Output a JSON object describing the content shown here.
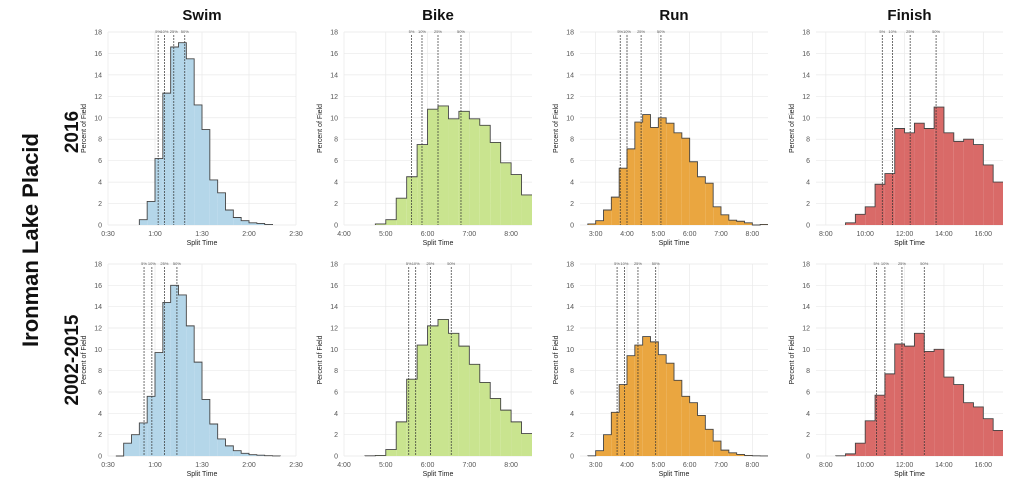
{
  "figure": {
    "main_label": "Ironman Lake Placid",
    "row_labels": [
      "2016",
      "2002-2015"
    ],
    "column_titles": [
      "Swim",
      "Bike",
      "Run",
      "Finish"
    ]
  },
  "chart_data": [
    {
      "type": "bar",
      "row": "2016",
      "title": "Swim",
      "xlabel": "Split Time",
      "ylabel": "Percent of Field",
      "xlim": [
        "0:30",
        "2:30"
      ],
      "ylim": [
        0,
        18
      ],
      "yticks": [
        0,
        2,
        4,
        6,
        8,
        10,
        12,
        14,
        16,
        18
      ],
      "xticks": [
        "0:30",
        "1:00",
        "1:30",
        "2:00",
        "2:30"
      ],
      "bin_width_min": 5,
      "color": "#b4d6e9",
      "grid": true,
      "bins": [
        "0:50",
        "0:55",
        "1:00",
        "1:05",
        "1:10",
        "1:15",
        "1:20",
        "1:25",
        "1:30",
        "1:35",
        "1:40",
        "1:45",
        "1:50",
        "1:55",
        "2:00",
        "2:05",
        "2:10"
      ],
      "values": [
        0.5,
        2.2,
        6.2,
        12.3,
        16.6,
        17.0,
        15.5,
        11.2,
        8.9,
        4.2,
        3.0,
        1.4,
        0.7,
        0.4,
        0.2,
        0.15,
        0.05
      ],
      "percentiles": [
        {
          "label": "5%",
          "value": "1:02"
        },
        {
          "label": "10%",
          "value": "1:06"
        },
        {
          "label": "25%",
          "value": "1:12"
        },
        {
          "label": "50%",
          "value": "1:19"
        }
      ]
    },
    {
      "type": "bar",
      "row": "2016",
      "title": "Bike",
      "xlabel": "Split Time",
      "ylabel": "Percent of Field",
      "xlim": [
        "4:00",
        "8:30"
      ],
      "ylim": [
        0,
        18
      ],
      "yticks": [
        0,
        2,
        4,
        6,
        8,
        10,
        12,
        14,
        16,
        18
      ],
      "xticks": [
        "4:00",
        "5:00",
        "6:00",
        "7:00",
        "8:00"
      ],
      "bin_width_min": 15,
      "color": "#c9e48f",
      "grid": true,
      "bins": [
        "4:45",
        "5:00",
        "5:15",
        "5:30",
        "5:45",
        "6:00",
        "6:15",
        "6:30",
        "6:45",
        "7:00",
        "7:15",
        "7:30",
        "7:45",
        "8:00",
        "8:15"
      ],
      "values": [
        0.1,
        0.5,
        2.5,
        4.5,
        7.5,
        10.8,
        11.1,
        9.9,
        10.6,
        9.9,
        9.3,
        7.7,
        5.8,
        4.7,
        2.8
      ],
      "percentiles": [
        {
          "label": "5%",
          "value": "5:37"
        },
        {
          "label": "10%",
          "value": "5:52"
        },
        {
          "label": "25%",
          "value": "6:15"
        },
        {
          "label": "50%",
          "value": "6:48"
        }
      ]
    },
    {
      "type": "bar",
      "row": "2016",
      "title": "Run",
      "xlabel": "Split Time",
      "ylabel": "Percent of Field",
      "xlim": [
        "2:30",
        "8:30"
      ],
      "ylim": [
        0,
        18
      ],
      "yticks": [
        0,
        2,
        4,
        6,
        8,
        10,
        12,
        14,
        16,
        18
      ],
      "xticks": [
        "3:00",
        "4:00",
        "5:00",
        "6:00",
        "7:00",
        "8:00"
      ],
      "bin_width_min": 15,
      "color": "#eaa640",
      "grid": true,
      "bins": [
        "2:45",
        "3:00",
        "3:15",
        "3:30",
        "3:45",
        "4:00",
        "4:15",
        "4:30",
        "4:45",
        "5:00",
        "5:15",
        "5:30",
        "5:45",
        "6:00",
        "6:15",
        "6:30",
        "6:45",
        "7:00",
        "7:15",
        "7:30",
        "7:45",
        "8:00",
        "8:15"
      ],
      "values": [
        0.1,
        0.4,
        1.4,
        2.6,
        5.3,
        7.1,
        9.6,
        10.3,
        9.1,
        10.0,
        9.5,
        8.6,
        8.1,
        5.9,
        4.5,
        3.9,
        1.7,
        0.95,
        0.45,
        0.35,
        0.2,
        0.0,
        0.05
      ],
      "percentiles": [
        {
          "label": "5%",
          "value": "3:47"
        },
        {
          "label": "10%",
          "value": "4:00"
        },
        {
          "label": "25%",
          "value": "4:27"
        },
        {
          "label": "50%",
          "value": "5:05"
        }
      ]
    },
    {
      "type": "bar",
      "row": "2016",
      "title": "Finish",
      "xlabel": "Split Time",
      "ylabel": "Percent of Field",
      "xlim": [
        "7:30",
        "17:00"
      ],
      "ylim": [
        0,
        18
      ],
      "yticks": [
        0,
        2,
        4,
        6,
        8,
        10,
        12,
        14,
        16,
        18
      ],
      "xticks": [
        "8:00",
        "10:00",
        "12:00",
        "14:00",
        "16:00"
      ],
      "bin_width_min": 30,
      "color": "#d96a68",
      "grid": true,
      "bins": [
        "9:00",
        "9:30",
        "10:00",
        "10:30",
        "11:00",
        "11:30",
        "12:00",
        "12:30",
        "13:00",
        "13:30",
        "14:00",
        "14:30",
        "15:00",
        "15:30",
        "16:00",
        "16:30"
      ],
      "values": [
        0.2,
        1.0,
        1.7,
        3.8,
        4.8,
        9.0,
        8.6,
        9.5,
        9.0,
        11.0,
        8.6,
        7.8,
        8.0,
        7.5,
        5.6,
        4.0
      ],
      "percentiles": [
        {
          "label": "5%",
          "value": "10:52"
        },
        {
          "label": "10%",
          "value": "11:23"
        },
        {
          "label": "25%",
          "value": "12:17"
        },
        {
          "label": "50%",
          "value": "13:36"
        }
      ]
    },
    {
      "type": "bar",
      "row": "2002-2015",
      "title": "Swim",
      "xlabel": "Split Time",
      "ylabel": "Percent of Field",
      "xlim": [
        "0:30",
        "2:30"
      ],
      "ylim": [
        0,
        18
      ],
      "yticks": [
        0,
        2,
        4,
        6,
        8,
        10,
        12,
        14,
        16,
        18
      ],
      "xticks": [
        "0:30",
        "1:00",
        "1:30",
        "2:00",
        "2:30"
      ],
      "bin_width_min": 5,
      "color": "#b4d6e9",
      "grid": true,
      "bins": [
        "0:35",
        "0:40",
        "0:45",
        "0:50",
        "0:55",
        "1:00",
        "1:05",
        "1:10",
        "1:15",
        "1:20",
        "1:25",
        "1:30",
        "1:35",
        "1:40",
        "1:45",
        "1:50",
        "1:55",
        "2:00",
        "2:05",
        "2:10",
        "2:15"
      ],
      "values": [
        0.0,
        1.2,
        2.0,
        3.1,
        5.6,
        9.7,
        14.4,
        16.0,
        15.1,
        12.2,
        8.8,
        5.3,
        3.0,
        1.6,
        0.95,
        0.5,
        0.25,
        0.12,
        0.08,
        0.03,
        0.01
      ],
      "percentiles": [
        {
          "label": "5%",
          "value": "0:53"
        },
        {
          "label": "10%",
          "value": "0:58"
        },
        {
          "label": "25%",
          "value": "1:06"
        },
        {
          "label": "50%",
          "value": "1:14"
        }
      ]
    },
    {
      "type": "bar",
      "row": "2002-2015",
      "title": "Bike",
      "xlabel": "Split Time",
      "ylabel": "Percent of Field",
      "xlim": [
        "4:00",
        "8:30"
      ],
      "ylim": [
        0,
        18
      ],
      "yticks": [
        0,
        2,
        4,
        6,
        8,
        10,
        12,
        14,
        16,
        18
      ],
      "xticks": [
        "4:00",
        "5:00",
        "6:00",
        "7:00",
        "8:00"
      ],
      "bin_width_min": 15,
      "color": "#c9e48f",
      "grid": true,
      "bins": [
        "4:30",
        "4:45",
        "5:00",
        "5:15",
        "5:30",
        "5:45",
        "6:00",
        "6:15",
        "6:30",
        "6:45",
        "7:00",
        "7:15",
        "7:30",
        "7:45",
        "8:00",
        "8:15"
      ],
      "values": [
        0.02,
        0.05,
        0.6,
        3.2,
        7.2,
        10.4,
        12.2,
        12.8,
        11.5,
        10.3,
        8.6,
        6.9,
        5.4,
        4.3,
        3.2,
        2.1
      ],
      "percentiles": [
        {
          "label": "5%",
          "value": "5:33"
        },
        {
          "label": "10%",
          "value": "5:43"
        },
        {
          "label": "25%",
          "value": "6:04"
        },
        {
          "label": "50%",
          "value": "6:34"
        }
      ]
    },
    {
      "type": "bar",
      "row": "2002-2015",
      "title": "Run",
      "xlabel": "Split Time",
      "ylabel": "Percent of Field",
      "xlim": [
        "2:30",
        "8:30"
      ],
      "ylim": [
        0,
        18
      ],
      "yticks": [
        0,
        2,
        4,
        6,
        8,
        10,
        12,
        14,
        16,
        18
      ],
      "xticks": [
        "3:00",
        "4:00",
        "5:00",
        "6:00",
        "7:00",
        "8:00"
      ],
      "bin_width_min": 15,
      "color": "#eaa640",
      "grid": true,
      "bins": [
        "2:45",
        "3:00",
        "3:15",
        "3:30",
        "3:45",
        "4:00",
        "4:15",
        "4:30",
        "4:45",
        "5:00",
        "5:15",
        "5:30",
        "5:45",
        "6:00",
        "6:15",
        "6:30",
        "6:45",
        "7:00",
        "7:15",
        "7:30",
        "7:45",
        "8:00",
        "8:15"
      ],
      "values": [
        0.02,
        0.5,
        2.0,
        4.1,
        6.7,
        9.4,
        10.4,
        11.2,
        10.7,
        9.5,
        8.7,
        7.1,
        5.6,
        5.0,
        3.8,
        2.5,
        1.4,
        0.55,
        0.3,
        0.15,
        0.05,
        0.02,
        0.01
      ],
      "percentiles": [
        {
          "label": "5%",
          "value": "3:41"
        },
        {
          "label": "10%",
          "value": "3:55"
        },
        {
          "label": "25%",
          "value": "4:21"
        },
        {
          "label": "50%",
          "value": "4:55"
        }
      ]
    },
    {
      "type": "bar",
      "row": "2002-2015",
      "title": "Finish",
      "xlabel": "Split Time",
      "ylabel": "Percent of Field",
      "xlim": [
        "7:30",
        "17:00"
      ],
      "ylim": [
        0,
        18
      ],
      "yticks": [
        0,
        2,
        4,
        6,
        8,
        10,
        12,
        14,
        16,
        18
      ],
      "xticks": [
        "8:00",
        "10:00",
        "12:00",
        "14:00",
        "16:00"
      ],
      "bin_width_min": 30,
      "color": "#d96a68",
      "grid": true,
      "bins": [
        "8:30",
        "9:00",
        "9:30",
        "10:00",
        "10:30",
        "11:00",
        "11:30",
        "12:00",
        "12:30",
        "13:00",
        "13:30",
        "14:00",
        "14:30",
        "15:00",
        "15:30",
        "16:00",
        "16:30"
      ],
      "values": [
        0.02,
        0.2,
        1.2,
        3.3,
        5.7,
        7.7,
        10.5,
        10.3,
        11.5,
        9.8,
        10.0,
        7.4,
        6.7,
        5.0,
        4.6,
        3.5,
        2.4
      ],
      "percentiles": [
        {
          "label": "5%",
          "value": "10:34"
        },
        {
          "label": "10%",
          "value": "11:00"
        },
        {
          "label": "25%",
          "value": "11:52"
        },
        {
          "label": "50%",
          "value": "13:00"
        }
      ]
    }
  ]
}
